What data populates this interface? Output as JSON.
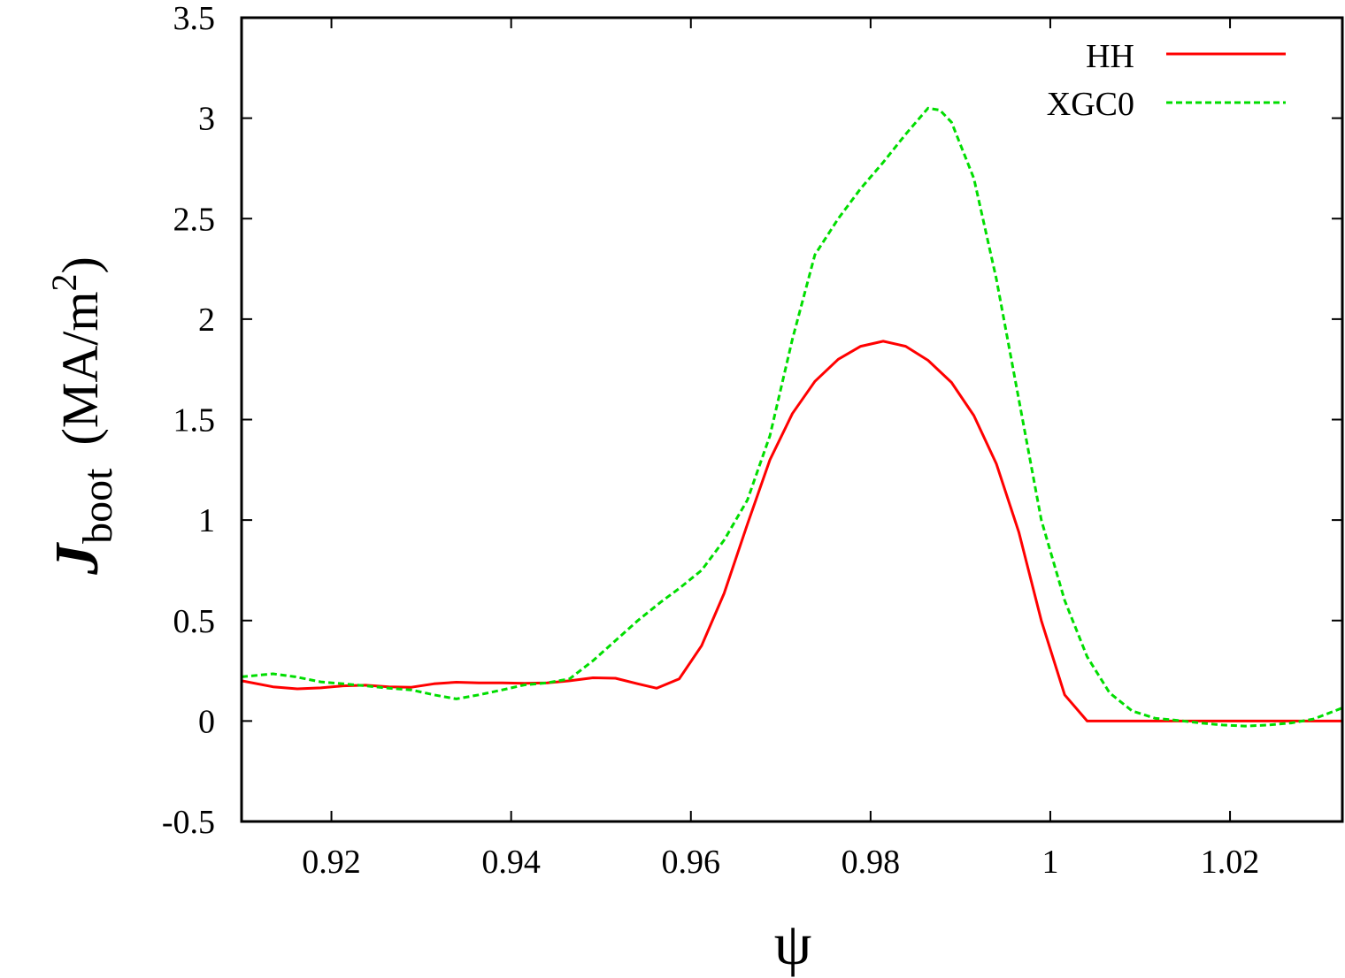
{
  "chart_data": {
    "type": "line",
    "xlabel": "ψ",
    "ylabel": {
      "symbol": "J",
      "subscript": "boot",
      "unit_open": "(MA/m",
      "unit_power": "2",
      "unit_close": ")"
    },
    "xlim": [
      0.91,
      1.0325
    ],
    "ylim": [
      -0.5,
      3.5
    ],
    "x_ticks": [
      0.92,
      0.94,
      0.96,
      0.98,
      1.0,
      1.02
    ],
    "x_tick_labels": [
      "0.92",
      "0.94",
      "0.96",
      "0.98",
      "1",
      "1.02"
    ],
    "y_ticks": [
      -0.5,
      0,
      0.5,
      1,
      1.5,
      2,
      2.5,
      3,
      3.5
    ],
    "y_tick_labels": [
      "-0.5",
      "0",
      "0.5",
      "1",
      "1.5",
      "2",
      "2.5",
      "3",
      "3.5"
    ],
    "grid": false,
    "legend_position": "top-right",
    "series": [
      {
        "name": "HH",
        "color": "#ff0000",
        "dash": "solid",
        "x": [
          0.91,
          0.9135,
          0.9162,
          0.9188,
          0.9213,
          0.9238,
          0.9264,
          0.9289,
          0.9314,
          0.9339,
          0.9364,
          0.939,
          0.9415,
          0.944,
          0.9465,
          0.9491,
          0.9516,
          0.9541,
          0.9562,
          0.9587,
          0.9612,
          0.9637,
          0.9663,
          0.9688,
          0.9713,
          0.9738,
          0.9764,
          0.9789,
          0.9814,
          0.9839,
          0.9864,
          0.989,
          0.9915,
          0.994,
          0.9965,
          0.999,
          1.0016,
          1.0041,
          1.0066,
          1.01,
          1.015,
          1.02,
          1.025,
          1.0325
        ],
        "y": [
          0.2,
          0.17,
          0.16,
          0.165,
          0.175,
          0.178,
          0.17,
          0.168,
          0.185,
          0.193,
          0.19,
          0.19,
          0.188,
          0.19,
          0.2,
          0.215,
          0.213,
          0.185,
          0.163,
          0.21,
          0.375,
          0.635,
          0.98,
          1.3,
          1.53,
          1.69,
          1.8,
          1.865,
          1.89,
          1.865,
          1.795,
          1.685,
          1.52,
          1.28,
          0.94,
          0.5,
          0.13,
          0.0,
          0.0,
          0.0,
          0.0,
          0.0,
          0.0,
          0.0
        ]
      },
      {
        "name": "XGC0",
        "color": "#00dd00",
        "dash": "dashed",
        "x": [
          0.91,
          0.9135,
          0.916,
          0.9188,
          0.9213,
          0.9238,
          0.9264,
          0.9289,
          0.9314,
          0.9339,
          0.9364,
          0.939,
          0.9415,
          0.944,
          0.9465,
          0.9491,
          0.9516,
          0.9541,
          0.9566,
          0.9587,
          0.9612,
          0.9637,
          0.9663,
          0.9688,
          0.9713,
          0.9738,
          0.9764,
          0.9789,
          0.9814,
          0.9839,
          0.9864,
          0.9877,
          0.989,
          0.9915,
          0.994,
          0.9965,
          0.999,
          1.0016,
          1.0041,
          1.0066,
          1.0091,
          1.0117,
          1.0142,
          1.0167,
          1.0192,
          1.0217,
          1.0243,
          1.0268,
          1.0293,
          1.0325
        ],
        "y": [
          0.22,
          0.235,
          0.22,
          0.195,
          0.185,
          0.175,
          0.163,
          0.155,
          0.13,
          0.11,
          0.13,
          0.155,
          0.18,
          0.19,
          0.21,
          0.3,
          0.4,
          0.5,
          0.59,
          0.66,
          0.75,
          0.9,
          1.1,
          1.42,
          1.9,
          2.32,
          2.5,
          2.65,
          2.78,
          2.92,
          3.05,
          3.04,
          2.98,
          2.7,
          2.2,
          1.6,
          1.0,
          0.6,
          0.32,
          0.14,
          0.05,
          0.013,
          0.003,
          -0.01,
          -0.02,
          -0.025,
          -0.02,
          -0.01,
          0.01,
          0.065
        ]
      }
    ]
  }
}
